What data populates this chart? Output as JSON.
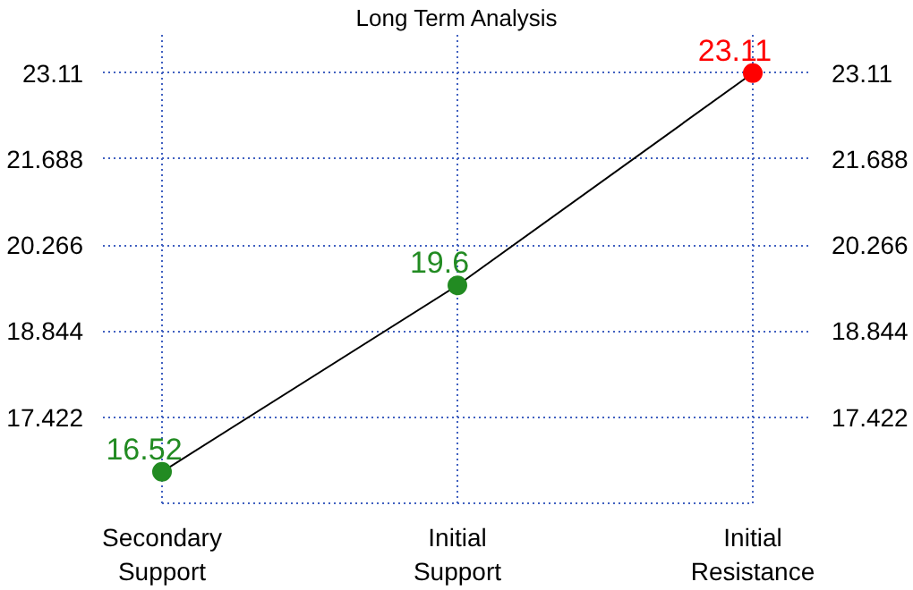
{
  "chart_data": {
    "type": "line",
    "title": "Long Term Analysis",
    "categories": [
      "Secondary\nSupport",
      "Initial\nSupport",
      "Initial\nResistance"
    ],
    "series": [
      {
        "values": [
          16.52,
          19.6,
          23.11
        ],
        "color": "#000000",
        "colors": [
          "#228b22",
          "#228b22",
          "#ff0000"
        ]
      }
    ],
    "ylim": [
      16.0,
      23.8
    ],
    "yticks": [
      17.422,
      18.844,
      20.266,
      21.688,
      23.11
    ],
    "y2lim": [
      16.0,
      23.8
    ],
    "y2ticks": [
      17.422,
      18.844,
      20.266,
      21.688,
      23.11
    ],
    "grid": true,
    "marker": "circle",
    "data_labels": true
  }
}
